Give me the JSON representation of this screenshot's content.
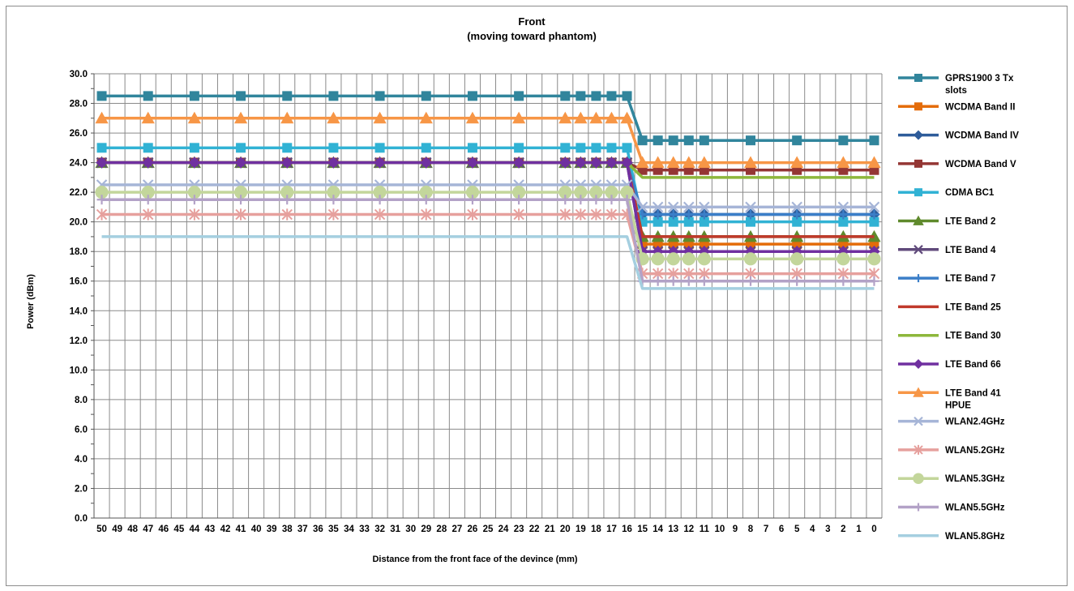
{
  "chart_data": {
    "type": "line",
    "title_line1": "Front",
    "title_line2": "(moving toward phantom)",
    "xlabel": "Distance from the front face of the devince (mm)",
    "ylabel": "Power (dBm)",
    "ylim": [
      0,
      30
    ],
    "y_ticks": [
      "0.0",
      "2.0",
      "4.0",
      "6.0",
      "8.0",
      "10.0",
      "12.0",
      "14.0",
      "16.0",
      "18.0",
      "20.0",
      "22.0",
      "24.0",
      "26.0",
      "28.0",
      "30.0"
    ],
    "x": [
      50,
      49,
      48,
      47,
      46,
      45,
      44,
      43,
      42,
      41,
      40,
      39,
      38,
      37,
      36,
      35,
      34,
      33,
      32,
      31,
      30,
      29,
      28,
      27,
      26,
      25,
      24,
      23,
      22,
      21,
      20,
      19,
      18,
      17,
      16,
      15,
      14,
      13,
      12,
      11,
      10,
      9,
      8,
      7,
      6,
      5,
      4,
      3,
      2,
      1,
      0
    ],
    "marker_x": [
      50,
      47,
      44,
      41,
      38,
      35,
      32,
      29,
      26,
      23,
      20,
      19,
      18,
      17,
      16,
      15,
      14,
      13,
      12,
      11,
      8,
      5,
      2,
      0
    ],
    "grid": true,
    "legend_position": "right",
    "series": [
      {
        "name": "GPRS1900 3 Tx slots",
        "name_lines": [
          "GPRS1900 3 Tx",
          "slots"
        ],
        "far": 28.5,
        "near": 25.5,
        "color": "#31859C",
        "marker": "square"
      },
      {
        "name": "WCDMA Band II",
        "far": 24.0,
        "near": 18.5,
        "color": "#E46C0A",
        "marker": "square"
      },
      {
        "name": "WCDMA Band IV",
        "far": 24.0,
        "near": 20.5,
        "color": "#2E5C9A",
        "marker": "diamond"
      },
      {
        "name": "WCDMA Band V",
        "far": 24.0,
        "near": 23.5,
        "color": "#943634",
        "marker": "square"
      },
      {
        "name": "CDMA BC1",
        "far": 25.0,
        "near": 20.0,
        "color": "#31B2D4",
        "marker": "square"
      },
      {
        "name": "LTE Band 2",
        "far": 24.0,
        "near": 19.0,
        "color": "#5F8A2C",
        "marker": "triangle"
      },
      {
        "name": "LTE Band 4",
        "far": 24.0,
        "near": 18.0,
        "color": "#604A7B",
        "marker": "x"
      },
      {
        "name": "LTE Band 7",
        "far": 24.0,
        "near": 20.5,
        "color": "#3B7EC8",
        "marker": "plus"
      },
      {
        "name": "LTE Band 25",
        "far": 24.0,
        "near": 19.0,
        "color": "#C0392B",
        "marker": "none"
      },
      {
        "name": "LTE Band 30",
        "far": 24.0,
        "near": 23.0,
        "color": "#8DB73B",
        "marker": "none"
      },
      {
        "name": "LTE Band 66",
        "far": 24.0,
        "near": 18.0,
        "color": "#7030A0",
        "marker": "diamond"
      },
      {
        "name": "LTE Band 41 HPUE",
        "name_lines": [
          "LTE Band 41",
          "HPUE"
        ],
        "far": 27.0,
        "near": 24.0,
        "color": "#F79646",
        "marker": "triangle"
      },
      {
        "name": "WLAN2.4GHz",
        "far": 22.5,
        "near": 21.0,
        "color": "#A6B5D7",
        "marker": "x"
      },
      {
        "name": "WLAN5.2GHz",
        "far": 20.5,
        "near": 16.5,
        "color": "#E6A09D",
        "marker": "star"
      },
      {
        "name": "WLAN5.3GHz",
        "far": 22.0,
        "near": 17.5,
        "color": "#C3D69B",
        "marker": "circle"
      },
      {
        "name": "WLAN5.5GHz",
        "far": 21.5,
        "near": 16.0,
        "color": "#B3A2C7",
        "marker": "plus"
      },
      {
        "name": "WLAN5.8GHz",
        "far": 19.0,
        "near": 15.5,
        "color": "#A5CFE0",
        "marker": "none"
      }
    ]
  }
}
